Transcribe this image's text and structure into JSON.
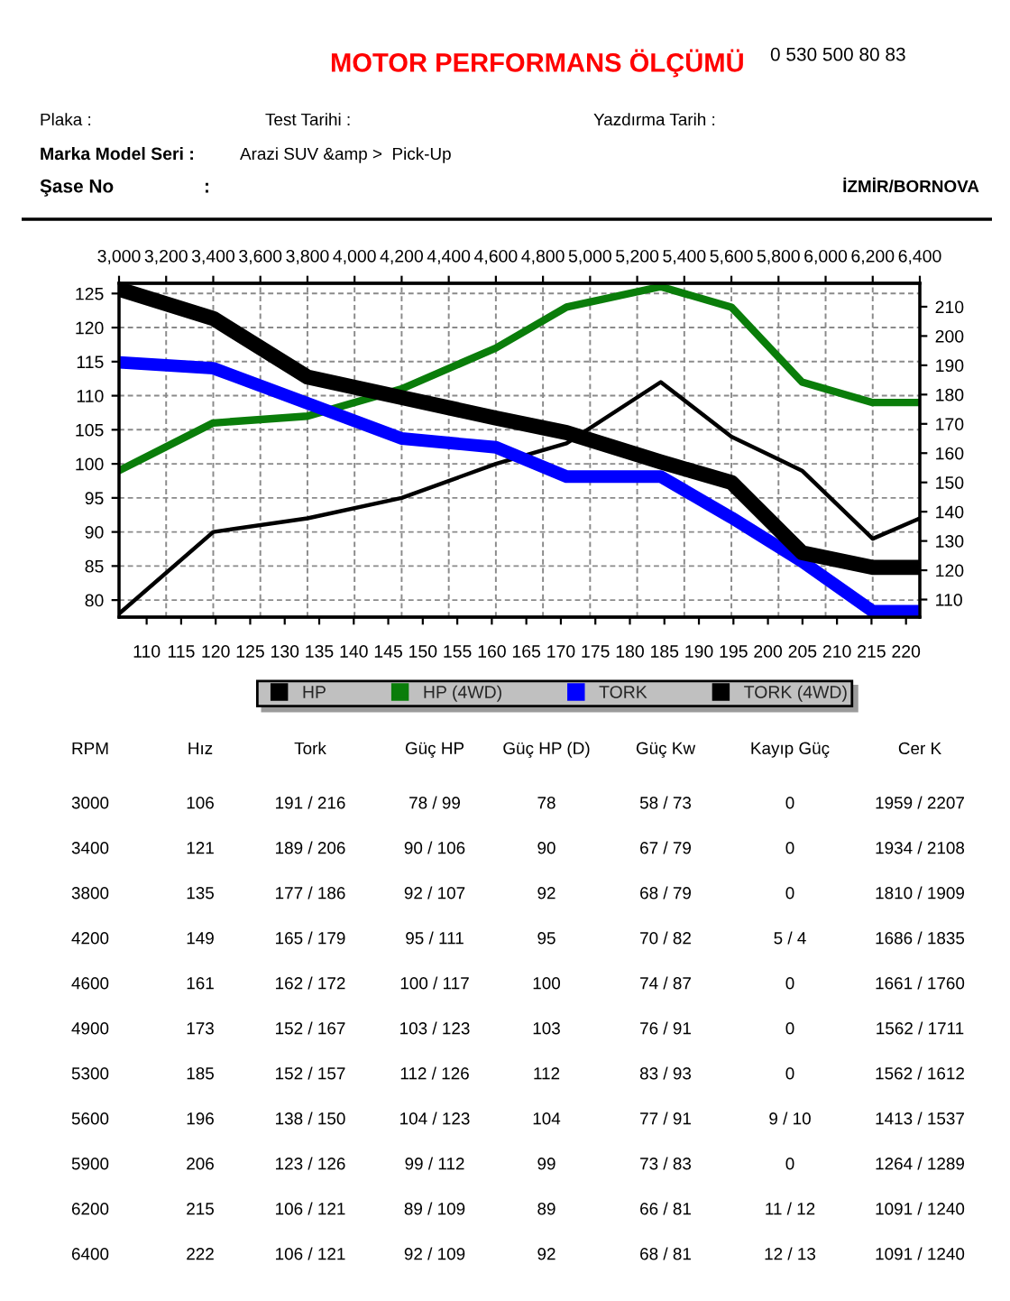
{
  "chart_data": [
    {
      "type": "other",
      "title": "MOTOR PERFORMANS ÖLÇÜMÜ",
      "annotations": [
        "0 530 500 80 83",
        "Plaka :",
        "Test Tarihi :",
        "Yazdırma Tarih :",
        "Marka Model Seri :",
        "Arazi SUV &amp >  Pick-Up",
        "Şase No",
        ":",
        "İZMİR/BORNOVA"
      ]
    },
    {
      "type": "line",
      "x": [
        3000,
        3400,
        3800,
        4200,
        4600,
        4900,
        5300,
        5600,
        5900,
        6200,
        6400
      ],
      "xlim": [
        3000,
        6400
      ],
      "xticks": [
        {
          "value": 3000,
          "label": "3,000"
        },
        {
          "value": 3200,
          "label": "3,200"
        },
        {
          "value": 3400,
          "label": "3,400"
        },
        {
          "value": 3600,
          "label": "3,600"
        },
        {
          "value": 3800,
          "label": "3,800"
        },
        {
          "value": 4000,
          "label": "4,000"
        },
        {
          "value": 4200,
          "label": "4,200"
        },
        {
          "value": 4400,
          "label": "4,400"
        },
        {
          "value": 4600,
          "label": "4,600"
        },
        {
          "value": 4800,
          "label": "4,800"
        },
        {
          "value": 5000,
          "label": "5,000"
        },
        {
          "value": 5200,
          "label": "5,200"
        },
        {
          "value": 5400,
          "label": "5,400"
        },
        {
          "value": 5600,
          "label": "5,600"
        },
        {
          "value": 5800,
          "label": "5,800"
        },
        {
          "value": 6000,
          "label": "6,000"
        },
        {
          "value": 6200,
          "label": "6,200"
        },
        {
          "value": 6400,
          "label": "6,400"
        }
      ],
      "x2lim": [
        106,
        222
      ],
      "x2ticks": [
        110,
        115,
        120,
        125,
        130,
        135,
        140,
        145,
        150,
        155,
        160,
        165,
        170,
        175,
        180,
        185,
        190,
        195,
        200,
        205,
        210,
        215,
        220
      ],
      "ylim": [
        77.5,
        126.5
      ],
      "yticks": [
        80,
        85,
        90,
        95,
        100,
        105,
        110,
        115,
        120,
        125
      ],
      "y2lim": [
        104,
        218
      ],
      "y2ticks": [
        110,
        120,
        130,
        140,
        150,
        160,
        170,
        180,
        190,
        200,
        210
      ],
      "series": [
        {
          "name": "HP",
          "color": "#000000",
          "values": [
            78,
            90,
            92,
            95,
            100,
            103,
            112,
            104,
            99,
            89,
            92
          ]
        },
        {
          "name": "HP (4WD)",
          "color": "#0a7d0a",
          "values": [
            99,
            106,
            107,
            111,
            117,
            123,
            126,
            123,
            112,
            109,
            109
          ]
        },
        {
          "name": "TORK",
          "color": "#0000ff",
          "axis": "y2",
          "values": [
            191,
            189,
            177,
            165,
            162,
            152,
            152,
            138,
            123,
            106,
            106
          ]
        },
        {
          "name": "TORK (4WD)",
          "color": "#000000",
          "axis": "y2",
          "values": [
            216,
            206,
            186,
            179,
            172,
            167,
            157,
            150,
            126,
            121,
            121
          ]
        }
      ],
      "legend": "bottom",
      "grid": true,
      "line_style": "solid"
    },
    {
      "type": "other",
      "annotations": [
        "RPM",
        "Hız",
        "Tork",
        "Güç HP",
        "Güç HP (D)",
        "Güç Kw",
        "Kayıp Güç",
        "Cer K",
        "3000",
        "106",
        "191 / 216",
        "78 / 99",
        "78",
        "58 / 73",
        "0",
        "1959 / 2207",
        "3400",
        "121",
        "189 / 206",
        "90 / 106",
        "90",
        "67 / 79",
        "0",
        "1934 / 2108",
        "3800",
        "135",
        "177 / 186",
        "92 / 107",
        "92",
        "68 / 79",
        "0",
        "1810 / 1909",
        "4200",
        "149",
        "165 / 179",
        "95 / 111",
        "95",
        "70 / 82",
        "5 / 4",
        "1686 / 1835",
        "4600",
        "161",
        "162 / 172",
        "100 / 117",
        "100",
        "74 / 87",
        "0",
        "1661 / 1760",
        "4900",
        "173",
        "152 / 167",
        "103 / 123",
        "103",
        "76 / 91",
        "0",
        "1562 / 1711",
        "5300",
        "185",
        "152 / 157",
        "112 / 126",
        "112",
        "83 / 93",
        "0",
        "1562 / 1612",
        "5600",
        "196",
        "138 / 150",
        "104 / 123",
        "104",
        "77 / 91",
        "9 / 10",
        "1413 / 1537",
        "5900",
        "206",
        "123 / 126",
        "99 / 112",
        "99",
        "73 / 83",
        "0",
        "1264 / 1289",
        "6200",
        "215",
        "106 / 121",
        "89 / 109",
        "89",
        "66 / 81",
        "11 / 12",
        "1091 / 1240",
        "6400",
        "222",
        "106 / 121",
        "92 / 109",
        "92",
        "68 / 81",
        "12 / 13",
        "1091 / 1240"
      ]
    }
  ]
}
